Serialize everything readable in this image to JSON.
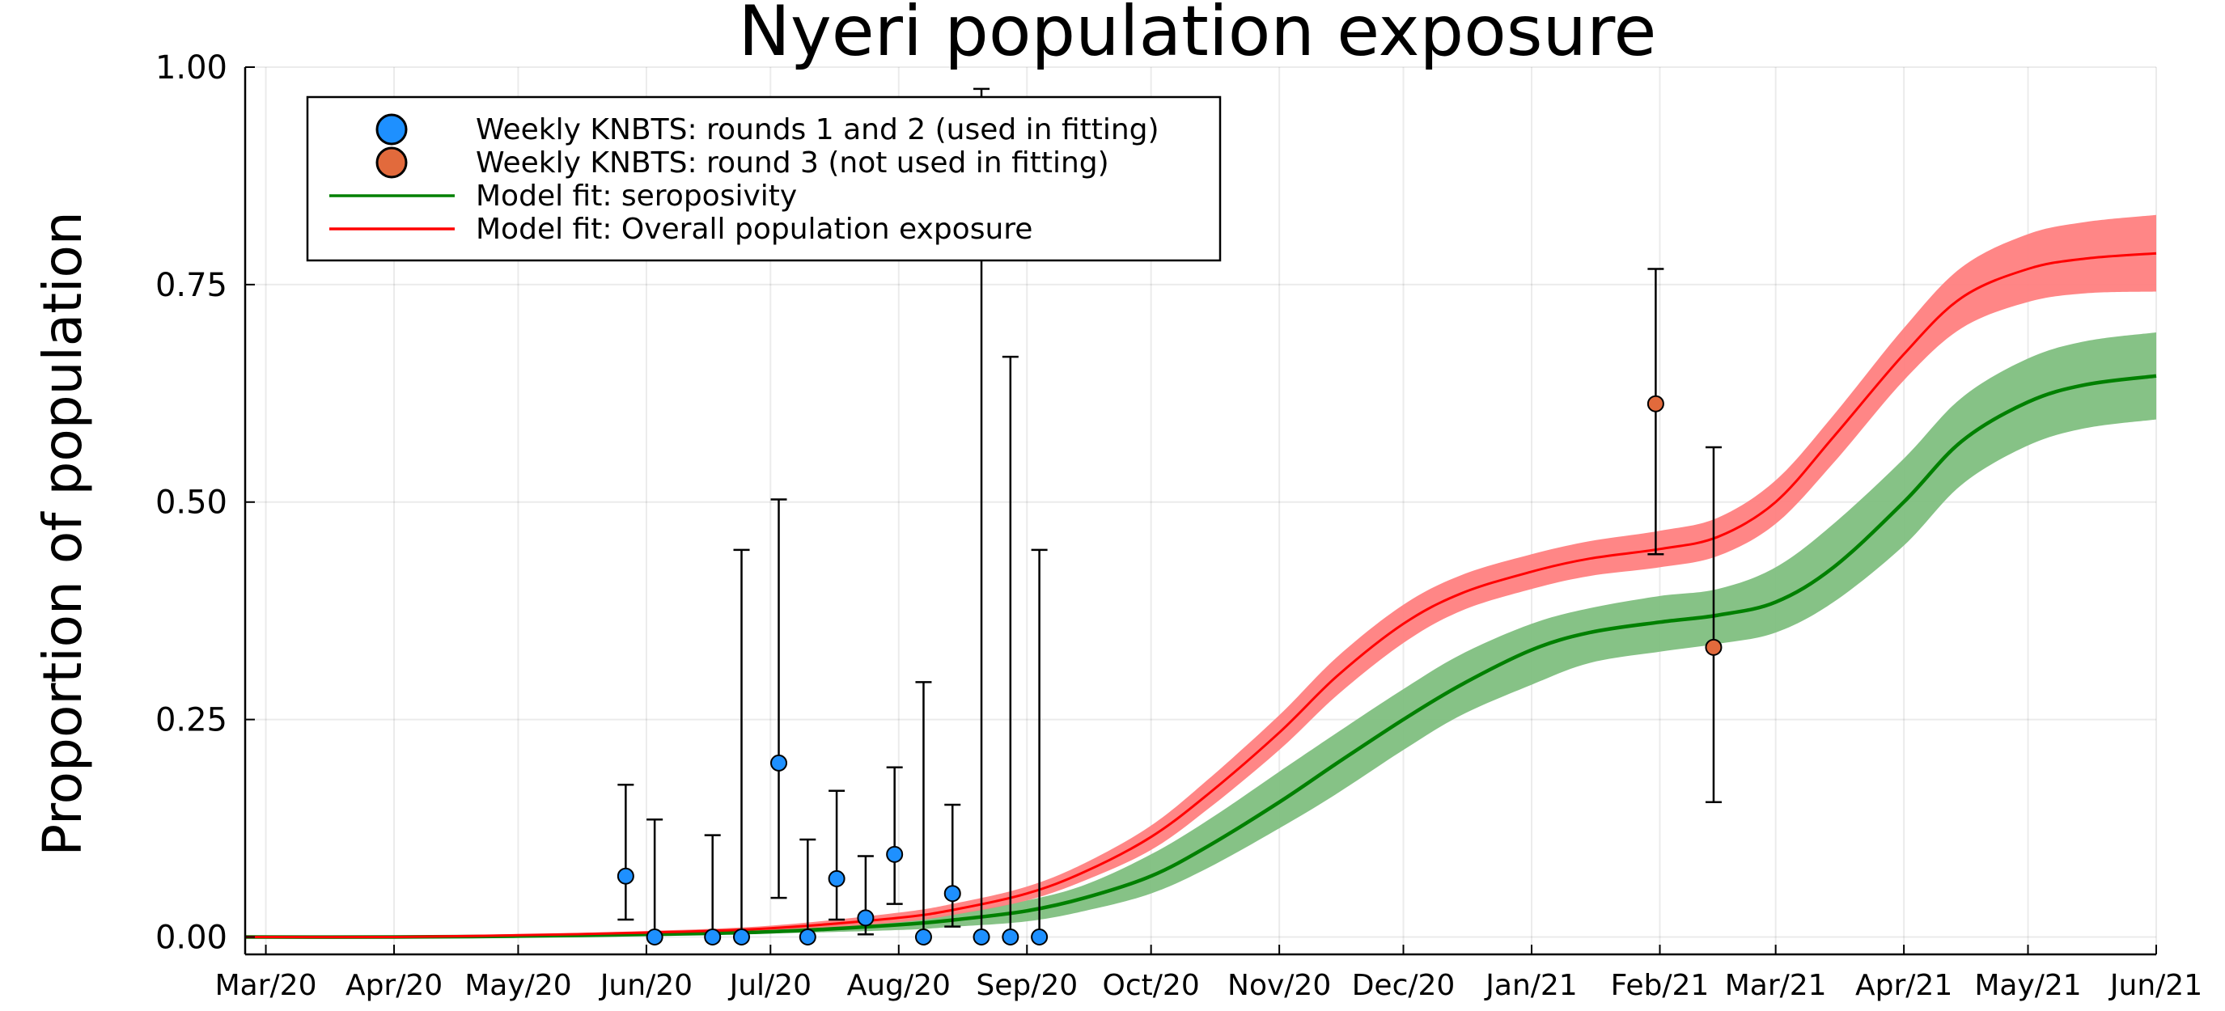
{
  "chart_data": {
    "type": "line",
    "title": "Nyeri population exposure",
    "xlabel": "",
    "ylabel": "Proportion of population",
    "xlim": [
      "2020-02-25",
      "2021-06-01"
    ],
    "ylim": [
      -0.02,
      1.0
    ],
    "grid": true,
    "legend_position": "top-left",
    "x_ticks": [
      {
        "date": "2020-03-01",
        "label": "Mar/20"
      },
      {
        "date": "2020-04-01",
        "label": "Apr/20"
      },
      {
        "date": "2020-05-01",
        "label": "May/20"
      },
      {
        "date": "2020-06-01",
        "label": "Jun/20"
      },
      {
        "date": "2020-07-01",
        "label": "Jul/20"
      },
      {
        "date": "2020-08-01",
        "label": "Aug/20"
      },
      {
        "date": "2020-09-01",
        "label": "Sep/20"
      },
      {
        "date": "2020-10-01",
        "label": "Oct/20"
      },
      {
        "date": "2020-11-01",
        "label": "Nov/20"
      },
      {
        "date": "2020-12-01",
        "label": "Dec/20"
      },
      {
        "date": "2021-01-01",
        "label": "Jan/21"
      },
      {
        "date": "2021-02-01",
        "label": "Feb/21"
      },
      {
        "date": "2021-03-01",
        "label": "Mar/21"
      },
      {
        "date": "2021-04-01",
        "label": "Apr/21"
      },
      {
        "date": "2021-05-01",
        "label": "May/21"
      },
      {
        "date": "2021-06-01",
        "label": "Jun/21"
      }
    ],
    "y_ticks": [
      {
        "value": 0.0,
        "label": "0.00"
      },
      {
        "value": 0.25,
        "label": "0.25"
      },
      {
        "value": 0.5,
        "label": "0.50"
      },
      {
        "value": 0.75,
        "label": "0.75"
      },
      {
        "value": 1.0,
        "label": "1.00"
      }
    ],
    "series": [
      {
        "name": "Weekly KNBTS: rounds 1 and 2 (used in fitting)",
        "kind": "scatter_errorbar",
        "color": "#1e90ff",
        "points": [
          {
            "x": "2020-05-27",
            "y": 0.07,
            "lo": 0.02,
            "hi": 0.175
          },
          {
            "x": "2020-06-03",
            "y": 0.0,
            "lo": 0.0,
            "hi": 0.135
          },
          {
            "x": "2020-06-17",
            "y": 0.0,
            "lo": 0.0,
            "hi": 0.117
          },
          {
            "x": "2020-06-24",
            "y": 0.0,
            "lo": 0.0,
            "hi": 0.445
          },
          {
            "x": "2020-07-03",
            "y": 0.2,
            "lo": 0.045,
            "hi": 0.503
          },
          {
            "x": "2020-07-10",
            "y": 0.0,
            "lo": 0.0,
            "hi": 0.112
          },
          {
            "x": "2020-07-17",
            "y": 0.067,
            "lo": 0.02,
            "hi": 0.168
          },
          {
            "x": "2020-07-24",
            "y": 0.022,
            "lo": 0.003,
            "hi": 0.093
          },
          {
            "x": "2020-07-31",
            "y": 0.095,
            "lo": 0.038,
            "hi": 0.195
          },
          {
            "x": "2020-08-07",
            "y": 0.0,
            "lo": 0.0,
            "hi": 0.293
          },
          {
            "x": "2020-08-14",
            "y": 0.05,
            "lo": 0.012,
            "hi": 0.152
          },
          {
            "x": "2020-08-21",
            "y": 0.0,
            "lo": 0.0,
            "hi": 0.975
          },
          {
            "x": "2020-08-28",
            "y": 0.0,
            "lo": 0.0,
            "hi": 0.667
          },
          {
            "x": "2020-09-04",
            "y": 0.0,
            "lo": 0.0,
            "hi": 0.445
          }
        ]
      },
      {
        "name": "Weekly KNBTS: round 3 (not used in fitting)",
        "kind": "scatter_errorbar",
        "color": "#e26a3c",
        "points": [
          {
            "x": "2021-01-31",
            "y": 0.613,
            "lo": 0.44,
            "hi": 0.768
          },
          {
            "x": "2021-02-14",
            "y": 0.333,
            "lo": 0.155,
            "hi": 0.563
          }
        ]
      },
      {
        "name": "Model fit: seroposivity",
        "kind": "line_band",
        "color": "#008000",
        "band_color": "#7fbf7f",
        "points": [
          {
            "x": "2020-02-25",
            "y": 0.0,
            "lo": 0.0,
            "hi": 0.0
          },
          {
            "x": "2020-04-01",
            "y": 0.0,
            "lo": 0.0,
            "hi": 0.0
          },
          {
            "x": "2020-05-01",
            "y": 0.001,
            "lo": 0.0,
            "hi": 0.002
          },
          {
            "x": "2020-06-01",
            "y": 0.003,
            "lo": 0.002,
            "hi": 0.005
          },
          {
            "x": "2020-07-01",
            "y": 0.006,
            "lo": 0.004,
            "hi": 0.009
          },
          {
            "x": "2020-08-01",
            "y": 0.014,
            "lo": 0.008,
            "hi": 0.02
          },
          {
            "x": "2020-08-15",
            "y": 0.02,
            "lo": 0.012,
            "hi": 0.028
          },
          {
            "x": "2020-09-01",
            "y": 0.03,
            "lo": 0.018,
            "hi": 0.042
          },
          {
            "x": "2020-09-15",
            "y": 0.045,
            "lo": 0.03,
            "hi": 0.06
          },
          {
            "x": "2020-10-01",
            "y": 0.07,
            "lo": 0.05,
            "hi": 0.095
          },
          {
            "x": "2020-10-15",
            "y": 0.105,
            "lo": 0.08,
            "hi": 0.135
          },
          {
            "x": "2020-11-01",
            "y": 0.155,
            "lo": 0.125,
            "hi": 0.19
          },
          {
            "x": "2020-11-15",
            "y": 0.2,
            "lo": 0.165,
            "hi": 0.235
          },
          {
            "x": "2020-12-01",
            "y": 0.25,
            "lo": 0.215,
            "hi": 0.285
          },
          {
            "x": "2020-12-15",
            "y": 0.29,
            "lo": 0.255,
            "hi": 0.325
          },
          {
            "x": "2021-01-01",
            "y": 0.33,
            "lo": 0.29,
            "hi": 0.36
          },
          {
            "x": "2021-01-15",
            "y": 0.35,
            "lo": 0.315,
            "hi": 0.378
          },
          {
            "x": "2021-02-01",
            "y": 0.362,
            "lo": 0.328,
            "hi": 0.392
          },
          {
            "x": "2021-02-15",
            "y": 0.37,
            "lo": 0.337,
            "hi": 0.4
          },
          {
            "x": "2021-03-01",
            "y": 0.385,
            "lo": 0.35,
            "hi": 0.425
          },
          {
            "x": "2021-03-15",
            "y": 0.425,
            "lo": 0.385,
            "hi": 0.475
          },
          {
            "x": "2021-04-01",
            "y": 0.5,
            "lo": 0.45,
            "hi": 0.55
          },
          {
            "x": "2021-04-15",
            "y": 0.57,
            "lo": 0.52,
            "hi": 0.62
          },
          {
            "x": "2021-05-01",
            "y": 0.615,
            "lo": 0.565,
            "hi": 0.665
          },
          {
            "x": "2021-05-15",
            "y": 0.635,
            "lo": 0.585,
            "hi": 0.685
          },
          {
            "x": "2021-06-01",
            "y": 0.645,
            "lo": 0.595,
            "hi": 0.695
          }
        ]
      },
      {
        "name": "Model fit: Overall population exposure",
        "kind": "line_band",
        "color": "#ff0000",
        "band_color": "#ff7f7f",
        "points": [
          {
            "x": "2020-02-25",
            "y": 0.0,
            "lo": 0.0,
            "hi": 0.0
          },
          {
            "x": "2020-04-01",
            "y": 0.0,
            "lo": 0.0,
            "hi": 0.001
          },
          {
            "x": "2020-05-01",
            "y": 0.002,
            "lo": 0.001,
            "hi": 0.003
          },
          {
            "x": "2020-06-01",
            "y": 0.005,
            "lo": 0.003,
            "hi": 0.007
          },
          {
            "x": "2020-07-01",
            "y": 0.01,
            "lo": 0.007,
            "hi": 0.013
          },
          {
            "x": "2020-08-01",
            "y": 0.022,
            "lo": 0.017,
            "hi": 0.028
          },
          {
            "x": "2020-08-15",
            "y": 0.032,
            "lo": 0.026,
            "hi": 0.039
          },
          {
            "x": "2020-09-01",
            "y": 0.05,
            "lo": 0.042,
            "hi": 0.058
          },
          {
            "x": "2020-09-15",
            "y": 0.075,
            "lo": 0.065,
            "hi": 0.085
          },
          {
            "x": "2020-10-01",
            "y": 0.115,
            "lo": 0.1,
            "hi": 0.128
          },
          {
            "x": "2020-10-15",
            "y": 0.165,
            "lo": 0.148,
            "hi": 0.182
          },
          {
            "x": "2020-11-01",
            "y": 0.235,
            "lo": 0.215,
            "hi": 0.255
          },
          {
            "x": "2020-11-15",
            "y": 0.3,
            "lo": 0.278,
            "hi": 0.322
          },
          {
            "x": "2020-12-01",
            "y": 0.36,
            "lo": 0.338,
            "hi": 0.382
          },
          {
            "x": "2020-12-15",
            "y": 0.395,
            "lo": 0.375,
            "hi": 0.416
          },
          {
            "x": "2021-01-01",
            "y": 0.42,
            "lo": 0.4,
            "hi": 0.44
          },
          {
            "x": "2021-01-15",
            "y": 0.435,
            "lo": 0.415,
            "hi": 0.455
          },
          {
            "x": "2021-02-01",
            "y": 0.446,
            "lo": 0.425,
            "hi": 0.467
          },
          {
            "x": "2021-02-15",
            "y": 0.46,
            "lo": 0.438,
            "hi": 0.482
          },
          {
            "x": "2021-03-01",
            "y": 0.5,
            "lo": 0.475,
            "hi": 0.525
          },
          {
            "x": "2021-03-15",
            "y": 0.575,
            "lo": 0.545,
            "hi": 0.6
          },
          {
            "x": "2021-04-01",
            "y": 0.67,
            "lo": 0.64,
            "hi": 0.7
          },
          {
            "x": "2021-04-15",
            "y": 0.735,
            "lo": 0.7,
            "hi": 0.77
          },
          {
            "x": "2021-05-01",
            "y": 0.768,
            "lo": 0.73,
            "hi": 0.808
          },
          {
            "x": "2021-05-15",
            "y": 0.78,
            "lo": 0.74,
            "hi": 0.822
          },
          {
            "x": "2021-06-01",
            "y": 0.786,
            "lo": 0.742,
            "hi": 0.83
          }
        ]
      }
    ]
  }
}
